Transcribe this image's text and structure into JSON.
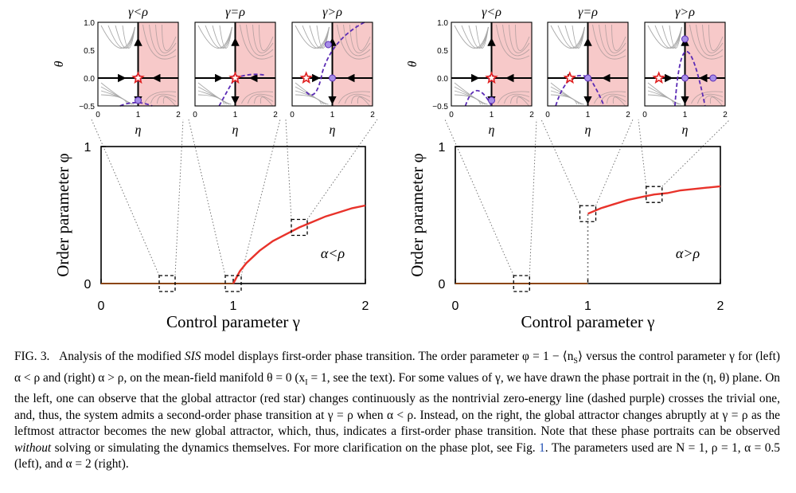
{
  "figure": {
    "panels": [
      {
        "side": "left",
        "condition_label": "α<ρ",
        "xlabel": "Control parameter γ",
        "ylabel": "Order parameter φ",
        "x_ticks": [
          "0",
          "1",
          "2"
        ],
        "y_ticks": [
          "0",
          "1"
        ],
        "insets": [
          {
            "title": "γ<ρ",
            "gamma": 0.5
          },
          {
            "title": "γ=ρ",
            "gamma": 1.0
          },
          {
            "title": "γ>ρ",
            "gamma": 1.5
          }
        ]
      },
      {
        "side": "right",
        "condition_label": "α>ρ",
        "xlabel": "Control parameter γ",
        "ylabel": "Order parameter φ",
        "x_ticks": [
          "0",
          "1",
          "2"
        ],
        "y_ticks": [
          "0",
          "1"
        ],
        "insets": [
          {
            "title": "γ<ρ",
            "gamma": 0.5
          },
          {
            "title": "γ=ρ",
            "gamma": 1.0
          },
          {
            "title": "γ>ρ",
            "gamma": 1.5
          }
        ]
      }
    ],
    "inset_axes": {
      "theta_label": "θ",
      "eta_label": "η",
      "theta_ticks": [
        "1.0",
        "0.5",
        "0.0",
        "−0.5"
      ],
      "eta_ticks": [
        "0",
        "1",
        "2"
      ]
    }
  },
  "chart_data": [
    {
      "type": "line",
      "title": "α<ρ",
      "xlabel": "Control parameter γ",
      "ylabel": "Order parameter φ",
      "xlim": [
        0,
        2
      ],
      "ylim": [
        0,
        1
      ],
      "series": [
        {
          "name": "trivial branch",
          "color": "#8B4513",
          "x": [
            0,
            1
          ],
          "y": [
            0,
            0
          ]
        },
        {
          "name": "order parameter",
          "color": "#e8322a",
          "x": [
            1.0,
            1.05,
            1.1,
            1.2,
            1.3,
            1.4,
            1.5,
            1.6,
            1.7,
            1.8,
            1.9,
            2.0
          ],
          "y": [
            0.0,
            0.09,
            0.15,
            0.24,
            0.31,
            0.36,
            0.41,
            0.45,
            0.49,
            0.52,
            0.55,
            0.57
          ]
        }
      ],
      "highlight_gamma": [
        0.5,
        1.0,
        1.5
      ]
    },
    {
      "type": "line",
      "title": "α>ρ",
      "xlabel": "Control parameter γ",
      "ylabel": "Order parameter φ",
      "xlim": [
        0,
        2
      ],
      "ylim": [
        0,
        1
      ],
      "series": [
        {
          "name": "trivial branch",
          "color": "#8B4513",
          "x": [
            0,
            1
          ],
          "y": [
            0,
            0
          ]
        },
        {
          "name": "order parameter",
          "color": "#e8322a",
          "x": [
            1.0,
            1.1,
            1.2,
            1.3,
            1.4,
            1.5,
            1.6,
            1.7,
            1.8,
            1.9,
            2.0
          ],
          "y": [
            0.51,
            0.55,
            0.58,
            0.61,
            0.63,
            0.65,
            0.66,
            0.68,
            0.69,
            0.7,
            0.71
          ]
        }
      ],
      "highlight_gamma": [
        0.5,
        1.0,
        1.5
      ]
    }
  ],
  "caption": {
    "label": "FIG. 3.",
    "t1": "Analysis of the modified ",
    "model": "SIS",
    "t2": " model displays first-order phase transition. The order parameter φ = 1 − ⟨n",
    "sub_s": "S",
    "t3": "⟩ versus the control parameter γ for (left) α < ρ and (right) α > ρ, on the mean-field manifold θ = 0 (x",
    "sub_i": "I",
    "t4": " = 1, see the text). For some values of γ, we have drawn the phase portrait in the (η, θ) plane. On the left, one can observe that the global attractor (red star) changes continuously as the nontrivial zero-energy line (dashed purple) crosses the trivial one, and, thus, the system admits a second-order phase transition at γ = ρ when α < ρ. Instead, on the right, the global attractor changes abruptly at γ = ρ as the leftmost attractor becomes the new global attractor, which, thus, indicates a first-order phase transition. Note that these phase portraits can be observed ",
    "emph": "without",
    "t5": " solving or simulating the dynamics themselves. For more clarification on the phase plot, see Fig. ",
    "fig_ref": "1",
    "t6": ". The parameters used are N = 1, ρ = 1, α = 0.5 (left), and α = 2 (right)."
  }
}
